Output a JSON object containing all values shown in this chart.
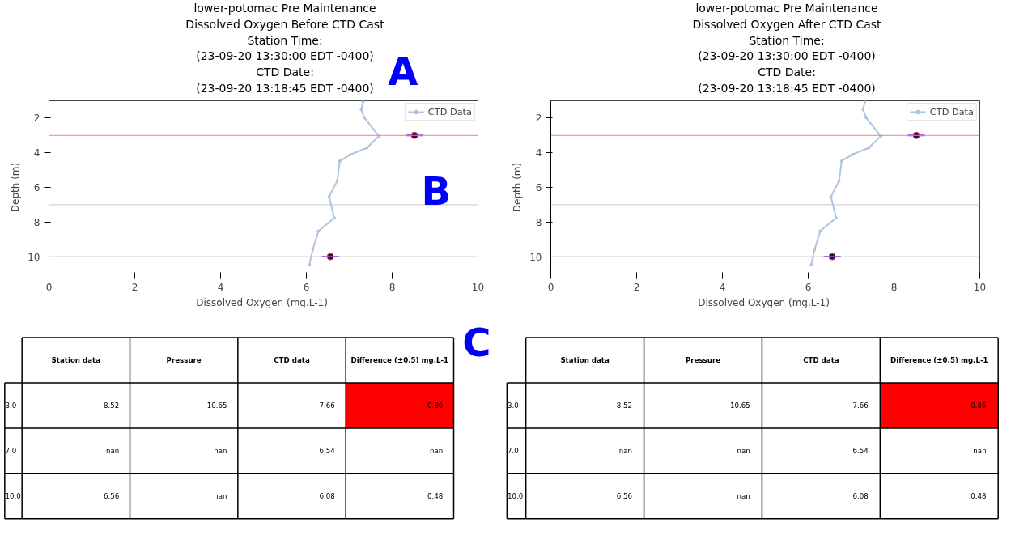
{
  "chart_data": [
    {
      "type": "line",
      "title": "lower-potomac Pre Maintenance\nDissolved Oxygen Before CTD Cast\nStation Time:\n(23-09-20 13:30:00 EDT -0400)\nCTD Date:\n(23-09-20 13:18:45 EDT -0400)",
      "xlabel": "Dissolved Oxygen  (mg.L-1)",
      "ylabel": "Depth (m)",
      "xlim": [
        0,
        10
      ],
      "xticks": [
        0,
        2,
        4,
        6,
        8,
        10
      ],
      "ylim": [
        11,
        1
      ],
      "yticks": [
        2,
        4,
        6,
        8,
        10
      ],
      "grid": false,
      "legend": "top right",
      "marker": "circle",
      "annotations": [
        "A",
        "B"
      ],
      "ref_lines": [
        {
          "axis": "y",
          "value": 3,
          "color": "#ff8080"
        },
        {
          "axis": "y",
          "value": 7,
          "color": "#c8c8c8"
        },
        {
          "axis": "y",
          "value": 10,
          "color": "#c8c8c8"
        }
      ],
      "series": [
        {
          "name": "CTD Data",
          "type": "line",
          "color": "#aec4e0",
          "x": [
            7.32,
            7.28,
            7.35,
            7.69,
            7.41,
            7.03,
            6.78,
            6.72,
            6.53,
            6.65,
            6.28,
            6.15,
            6.07
          ],
          "values": [
            1.05,
            1.51,
            1.97,
            3.04,
            3.72,
            4.1,
            4.48,
            5.62,
            6.54,
            7.76,
            8.52,
            9.59,
            10.47
          ]
        },
        {
          "type": "scatter",
          "color": "#2a0a5e",
          "x": [
            8.52,
            6.56
          ],
          "values": [
            3,
            10
          ],
          "xerrors": [
            0.2,
            0.2
          ]
        }
      ]
    },
    {
      "type": "line",
      "title": "lower-potomac Pre Maintenance\nDissolved Oxygen After CTD Cast\nStation Time:\n(23-09-20 13:30:00 EDT -0400)\nCTD Date:\n(23-09-20 13:18:45 EDT -0400)",
      "xlabel": "Dissolved Oxygen  (mg.L-1)",
      "ylabel": "Depth (m)",
      "xlim": [
        0,
        10
      ],
      "xticks": [
        0,
        2,
        4,
        6,
        8,
        10
      ],
      "ylim": [
        11,
        1
      ],
      "yticks": [
        2,
        4,
        6,
        8,
        10
      ],
      "grid": false,
      "legend": "top right",
      "marker": "circle",
      "ref_lines": [
        {
          "axis": "y",
          "value": 3,
          "color": "#ff8080"
        },
        {
          "axis": "y",
          "value": 7,
          "color": "#c8c8c8"
        },
        {
          "axis": "y",
          "value": 10,
          "color": "#c8c8c8"
        }
      ],
      "series": [
        {
          "name": "CTD Data",
          "type": "line",
          "color": "#aec4e0",
          "x": [
            7.32,
            7.28,
            7.35,
            7.69,
            7.41,
            7.03,
            6.78,
            6.72,
            6.53,
            6.65,
            6.28,
            6.15,
            6.07
          ],
          "values": [
            1.05,
            1.51,
            1.97,
            3.04,
            3.72,
            4.1,
            4.48,
            5.62,
            6.54,
            7.76,
            8.52,
            9.59,
            10.47
          ]
        },
        {
          "type": "scatter",
          "color": "#2a0a5e",
          "x": [
            8.52,
            6.56
          ],
          "values": [
            3,
            10
          ],
          "xerrors": [
            0.2,
            0.2
          ]
        }
      ]
    },
    {
      "type": "heatmap",
      "data_labels": true,
      "annotations": [
        "C"
      ],
      "categories": [
        "Station data",
        "Pressure",
        "CTD data",
        "Difference (±0.5) mg.L-1"
      ],
      "y_categories": [
        "3.0",
        "7.0",
        "10.0"
      ],
      "cells": [
        [
          8.52,
          10.65,
          7.66,
          0.86
        ],
        [
          null,
          null,
          6.54,
          null
        ],
        [
          6.56,
          null,
          6.08,
          0.48
        ]
      ],
      "cell_labels": [
        [
          "8.52",
          "10.65",
          "7.66",
          "0.86"
        ],
        [
          "nan",
          "nan",
          "6.54",
          "nan"
        ],
        [
          "6.56",
          "nan",
          "6.08",
          "0.48"
        ]
      ],
      "colors": [
        [
          "#ffffff",
          "#ffffff",
          "#ffffff",
          "#ff0000"
        ],
        [
          "#ffffff",
          "#ffffff",
          "#ffffff",
          "#ffffff"
        ],
        [
          "#ffffff",
          "#ffffff",
          "#ffffff",
          "#ffffff"
        ]
      ]
    },
    {
      "type": "heatmap",
      "data_labels": true,
      "categories": [
        "Station data",
        "Pressure",
        "CTD data",
        "Difference (±0.5) mg.L-1"
      ],
      "y_categories": [
        "3.0",
        "7.0",
        "10.0"
      ],
      "cells": [
        [
          8.52,
          10.65,
          7.66,
          0.86
        ],
        [
          null,
          null,
          6.54,
          null
        ],
        [
          6.56,
          null,
          6.08,
          0.48
        ]
      ],
      "cell_labels": [
        [
          "8.52",
          "10.65",
          "7.66",
          "0.86"
        ],
        [
          "nan",
          "nan",
          "6.54",
          "nan"
        ],
        [
          "6.56",
          "nan",
          "6.08",
          "0.48"
        ]
      ],
      "colors": [
        [
          "#ffffff",
          "#ffffff",
          "#ffffff",
          "#ff0000"
        ],
        [
          "#ffffff",
          "#ffffff",
          "#ffffff",
          "#ffffff"
        ],
        [
          "#ffffff",
          "#ffffff",
          "#ffffff",
          "#ffffff"
        ]
      ]
    }
  ]
}
